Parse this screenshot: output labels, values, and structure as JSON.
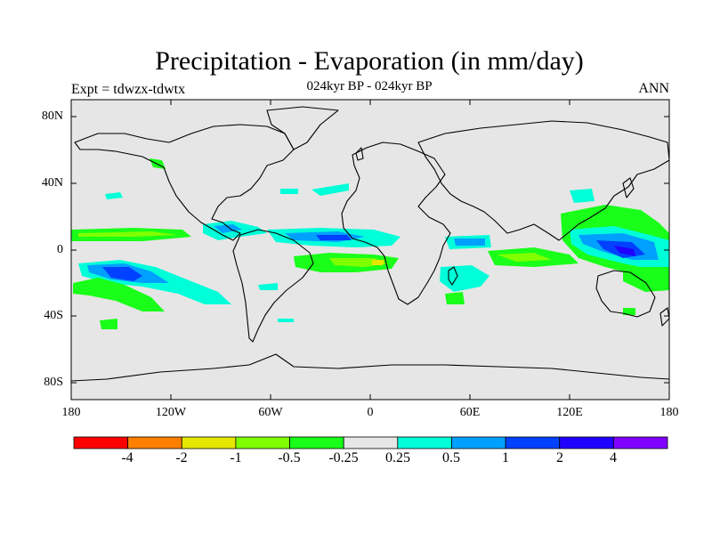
{
  "title": "Precipitation - Evaporation (in mm/day)",
  "subtitle": "024kyr BP - 024kyr BP",
  "experiment": "Expt = tdwzx-tdwtx",
  "season": "ANN",
  "map": {
    "lat_labels": [
      "80N",
      "40N",
      "0",
      "40S",
      "80S"
    ],
    "lon_labels": [
      "180",
      "120W",
      "60W",
      "0",
      "60E",
      "120E",
      "180"
    ],
    "ocean_color": "#e6e6e6",
    "land_color": "#e6e6e6",
    "coastline_color": "#000000"
  },
  "colorbar": {
    "labels": [
      "-4",
      "-2",
      "-1",
      "-0.5",
      "-0.25",
      "0.25",
      "0.5",
      "1",
      "2",
      "4"
    ],
    "colors": [
      "#ff0000",
      "#ff7f00",
      "#e6e600",
      "#80ff00",
      "#19ff19",
      "#e6e6e6",
      "#00ffd9",
      "#00a0ff",
      "#0040ff",
      "#2000ff",
      "#8000ff"
    ]
  }
}
